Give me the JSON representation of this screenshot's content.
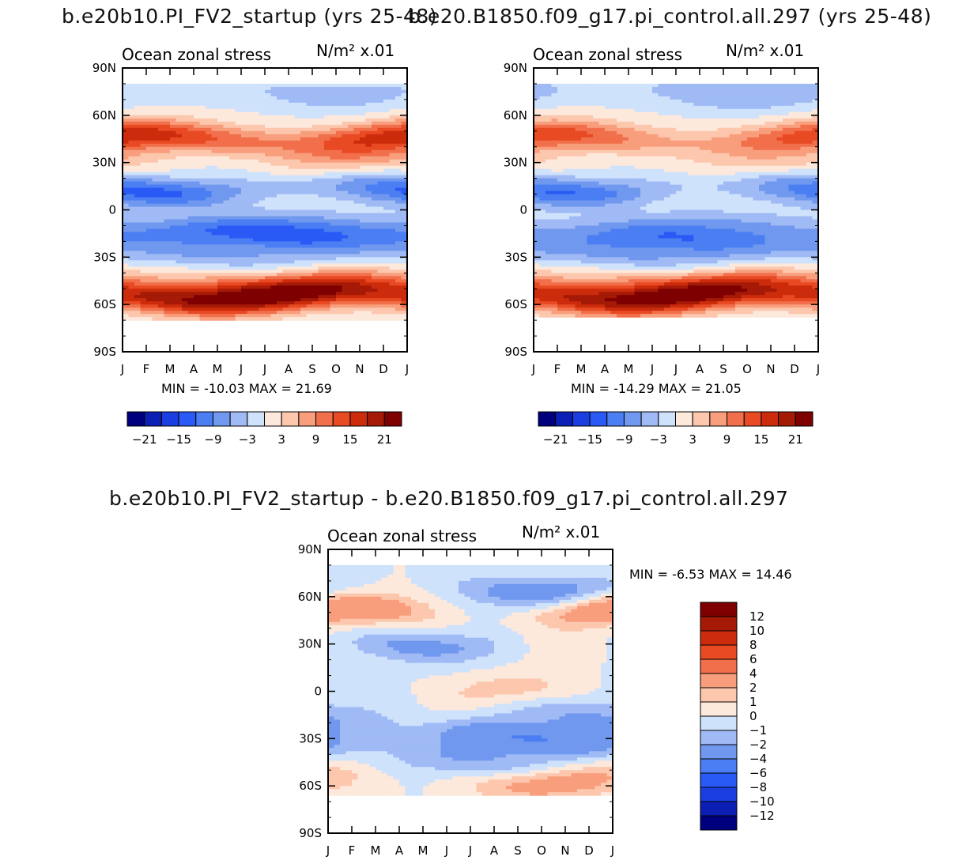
{
  "figure": {
    "top_left_title": "b.e20b10.PI_FV2_startup (yrs 25-48)",
    "top_right_title": "b.e20.B1850.f09_g17.pi_control.all.297 (yrs 25-48)",
    "diff_title": "b.e20b10.PI_FV2_startup - b.e20.B1850.f09_g17.pi_control.all.297"
  },
  "chart_data": [
    {
      "type": "heatmap",
      "id": "top-left",
      "title": "Ocean zonal stress",
      "units": "N/m² x.01",
      "x_ticks": [
        "J",
        "F",
        "M",
        "A",
        "M",
        "J",
        "J",
        "A",
        "S",
        "O",
        "N",
        "D",
        "J"
      ],
      "y_ticks": [
        "90N",
        "60N",
        "30N",
        "0",
        "30S",
        "60S",
        "90S"
      ],
      "ylim": [
        -90,
        90
      ],
      "min_max_text": "MIN = -10.03 MAX =  21.69",
      "min": -10.03,
      "max": 21.69,
      "colorbar": {
        "levels": [
          -21,
          -18,
          -15,
          -12,
          -9,
          -6,
          -3,
          0,
          3,
          6,
          9,
          12,
          15,
          18,
          21
        ],
        "labels": [
          "-21",
          "-15",
          "-9",
          "-3",
          "3",
          "9",
          "15",
          "21"
        ],
        "colors": [
          "#00007f",
          "#0c1fb5",
          "#1a3ee0",
          "#2a5af5",
          "#4a7ef2",
          "#7098ee",
          "#9fbaf5",
          "#cfe2fb",
          "#fde8dc",
          "#fcc7ad",
          "#f89e7c",
          "#f26f4b",
          "#e84a23",
          "#cc2c0c",
          "#a51a06",
          "#7e0000"
        ]
      },
      "bands": [
        {
          "lat": 75,
          "value": -3,
          "amp": 1.5
        },
        {
          "lat": 45,
          "value": 13,
          "amp": 4
        },
        {
          "lat": 30,
          "value": 3,
          "amp": 3
        },
        {
          "lat": 12,
          "value": -10,
          "amp": 4
        },
        {
          "lat": 5,
          "value": 2,
          "amp": 2
        },
        {
          "lat": -8,
          "value": -3,
          "amp": 2
        },
        {
          "lat": -16,
          "value": -10,
          "amp": 3
        },
        {
          "lat": -30,
          "value": -4,
          "amp": 2
        },
        {
          "lat": -45,
          "value": 6,
          "amp": 3
        },
        {
          "lat": -55,
          "value": 19,
          "amp": 3
        }
      ],
      "land": {
        "north": 79,
        "south": -70
      }
    },
    {
      "type": "heatmap",
      "id": "top-right",
      "title": "Ocean zonal stress",
      "units": "N/m² x.01",
      "x_ticks": [
        "J",
        "F",
        "M",
        "A",
        "M",
        "J",
        "J",
        "A",
        "S",
        "O",
        "N",
        "D",
        "J"
      ],
      "y_ticks": [
        "90N",
        "60N",
        "30N",
        "0",
        "30S",
        "60S",
        "90S"
      ],
      "ylim": [
        -90,
        90
      ],
      "min_max_text": "MIN = -14.29 MAX =  21.05",
      "min": -14.29,
      "max": 21.05,
      "colorbar": {
        "levels": [
          -21,
          -18,
          -15,
          -12,
          -9,
          -6,
          -3,
          0,
          3,
          6,
          9,
          12,
          15,
          18,
          21
        ],
        "labels": [
          "-21",
          "-15",
          "-9",
          "-3",
          "3",
          "9",
          "15",
          "21"
        ],
        "colors": [
          "#00007f",
          "#0c1fb5",
          "#1a3ee0",
          "#2a5af5",
          "#4a7ef2",
          "#7098ee",
          "#9fbaf5",
          "#cfe2fb",
          "#fde8dc",
          "#fcc7ad",
          "#f89e7c",
          "#f26f4b",
          "#e84a23",
          "#cc2c0c",
          "#a51a06",
          "#7e0000"
        ]
      },
      "bands": [
        {
          "lat": 75,
          "value": -4,
          "amp": 2
        },
        {
          "lat": 45,
          "value": 10,
          "amp": 4
        },
        {
          "lat": 28,
          "value": 2,
          "amp": 2
        },
        {
          "lat": 12,
          "value": -9,
          "amp": 4
        },
        {
          "lat": 5,
          "value": 2,
          "amp": 2
        },
        {
          "lat": -8,
          "value": -3,
          "amp": 2
        },
        {
          "lat": -18,
          "value": -8,
          "amp": 3
        },
        {
          "lat": -30,
          "value": -4,
          "amp": 2
        },
        {
          "lat": -45,
          "value": 6,
          "amp": 3
        },
        {
          "lat": -55,
          "value": 18,
          "amp": 3
        }
      ],
      "land": {
        "north": 79,
        "south": -67
      }
    },
    {
      "type": "heatmap",
      "id": "difference",
      "title": "Ocean zonal stress",
      "units": "N/m² x.01",
      "x_ticks": [
        "J",
        "F",
        "M",
        "A",
        "M",
        "J",
        "J",
        "A",
        "S",
        "O",
        "N",
        "D",
        "J"
      ],
      "y_ticks": [
        "90N",
        "60N",
        "30N",
        "0",
        "30S",
        "60S",
        "90S"
      ],
      "ylim": [
        -90,
        90
      ],
      "min_max_text": "MIN =  -6.53 MAX =  14.46",
      "min": -6.53,
      "max": 14.46,
      "colorbar": {
        "levels": [
          -12,
          -10,
          -8,
          -6,
          -4,
          -2,
          -1,
          0,
          1,
          2,
          4,
          6,
          8,
          10,
          12
        ],
        "labels": [
          "-12",
          "-10",
          "-8",
          "-6",
          "-4",
          "-2",
          "-1",
          "0",
          "1",
          "2",
          "4",
          "6",
          "8",
          "10",
          "12"
        ],
        "colors": [
          "#00007f",
          "#0c1fb5",
          "#1a3ee0",
          "#2a5af5",
          "#4a7ef2",
          "#7098ee",
          "#9fbaf5",
          "#cfe2fb",
          "#fde8dc",
          "#fcc7ad",
          "#f89e7c",
          "#f26f4b",
          "#e84a23",
          "#cc2c0c",
          "#a51a06",
          "#7e0000"
        ]
      },
      "bands": [
        {
          "lat": 65,
          "value": -1.5,
          "amp": 1.5
        },
        {
          "lat": 50,
          "value": 2,
          "amp": 2
        },
        {
          "lat": 30,
          "value": -1,
          "amp": 1.5
        },
        {
          "lat": 0,
          "value": 0.5,
          "amp": 1
        },
        {
          "lat": -15,
          "value": -1,
          "amp": 1
        },
        {
          "lat": -30,
          "value": -2.5,
          "amp": 1.5
        },
        {
          "lat": -45,
          "value": -1,
          "amp": 1
        },
        {
          "lat": -57,
          "value": 1.5,
          "amp": 1.5
        }
      ],
      "land": {
        "north": 79,
        "south": -66
      }
    }
  ]
}
